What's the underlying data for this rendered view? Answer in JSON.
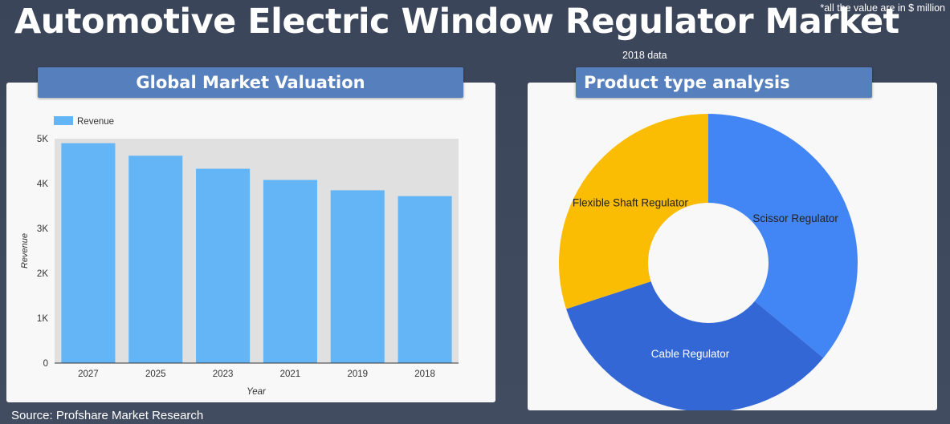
{
  "page": {
    "title": "Automotive Electric Window Regulator Market",
    "note": "*all the value are in $ million",
    "data_year_label": "2018 data",
    "source": "Source: Profshare Market Research",
    "background_color": "#3e485c"
  },
  "chart_data": [
    {
      "type": "bar",
      "title": "Global Market Valuation",
      "categories": [
        "2027",
        "2025",
        "2023",
        "2021",
        "2019",
        "2018"
      ],
      "series": [
        {
          "name": "Revenue",
          "values": [
            4900,
            4620,
            4330,
            4080,
            3850,
            3720
          ],
          "color": "#64b5f6"
        }
      ],
      "xlabel": "Year",
      "ylabel": "Revenue",
      "ylim": [
        0,
        5000
      ],
      "yticks": [
        0,
        1000,
        2000,
        3000,
        4000,
        5000
      ],
      "ytick_labels": [
        "0",
        "1K",
        "2K",
        "3K",
        "4K",
        "5K"
      ],
      "legend": "top-left",
      "plot_background": "#e0e0e0"
    },
    {
      "type": "pie",
      "title": "Product type analysis",
      "donut": true,
      "labels": [
        "Scissor Regulator",
        "Cable Regulator",
        "Flexible Shaft Regulator"
      ],
      "values": [
        36,
        34,
        30
      ],
      "colors": [
        "#4285f4",
        "#3367d6",
        "#fbbc04"
      ]
    }
  ]
}
